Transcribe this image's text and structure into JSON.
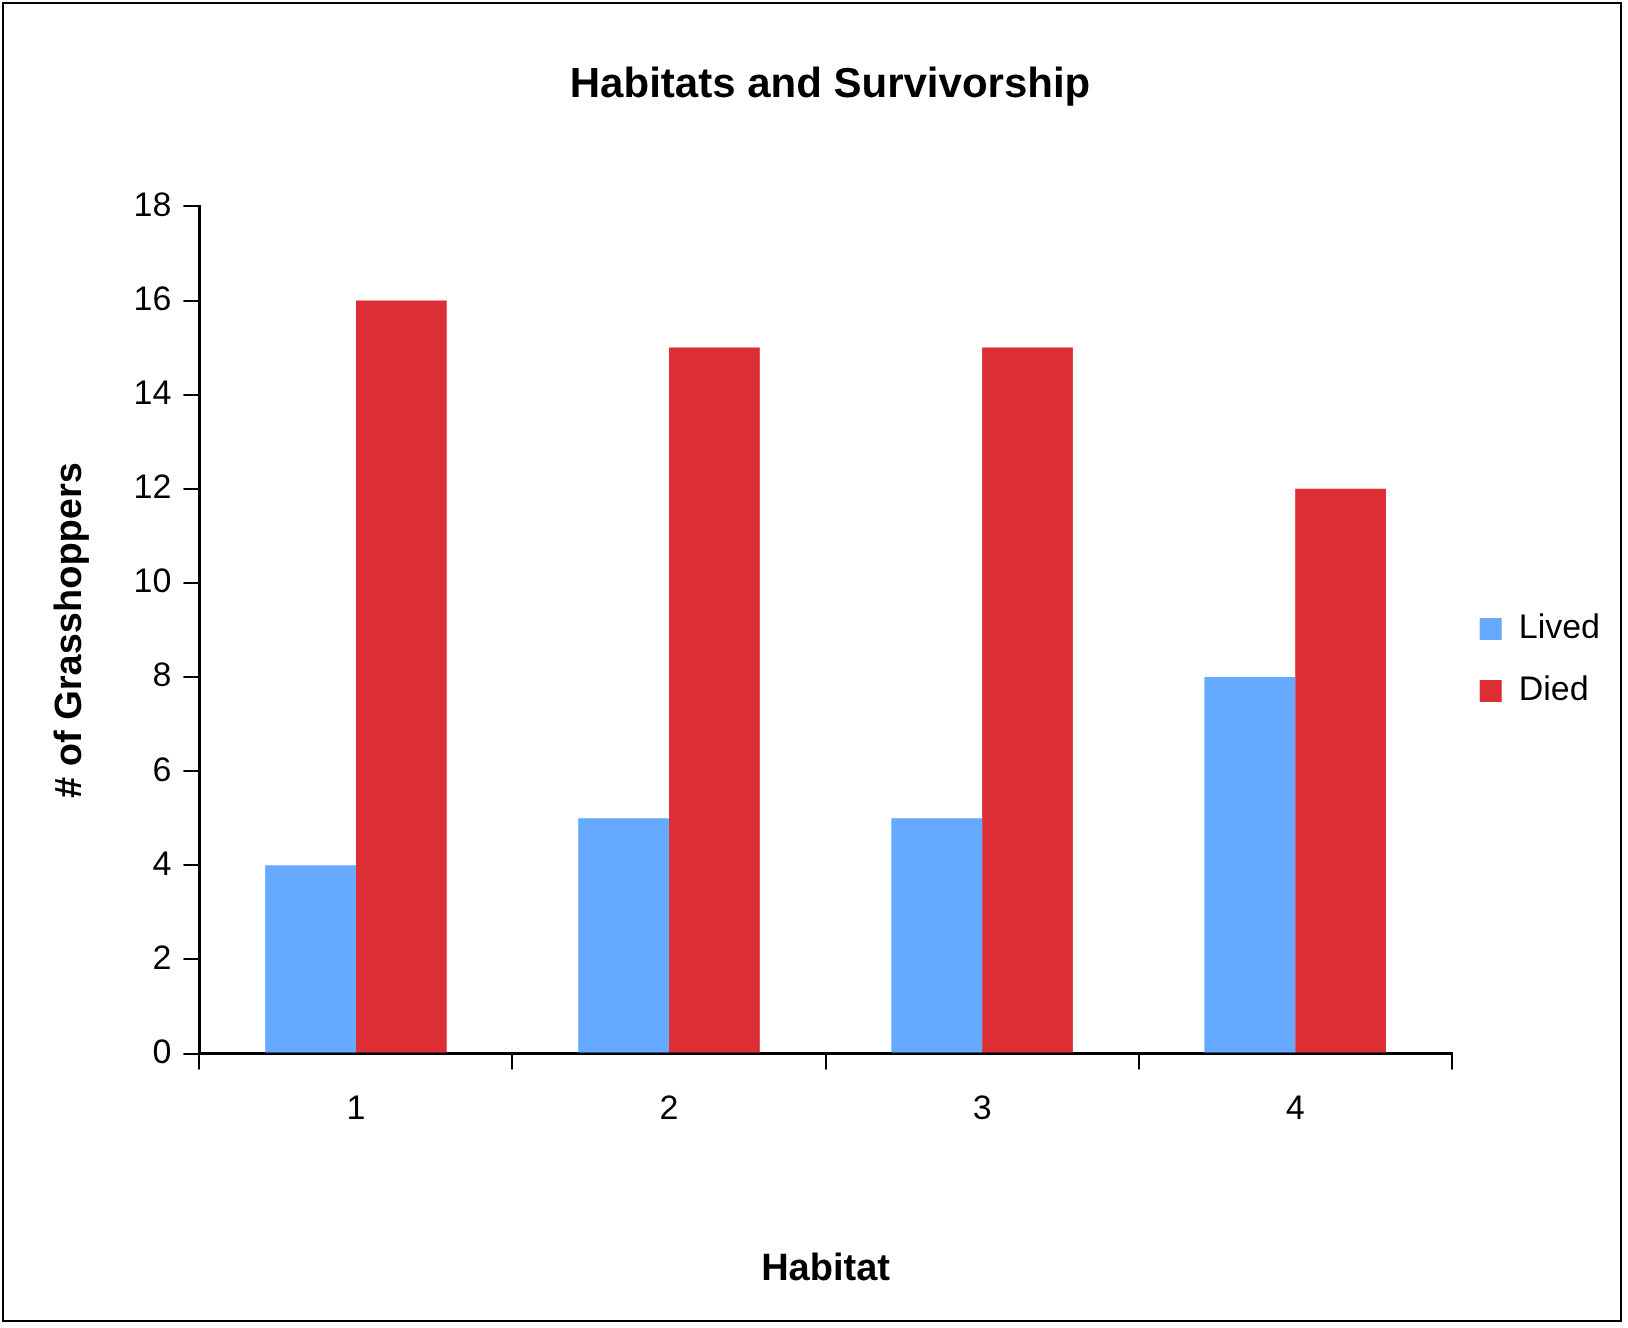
{
  "chart_data": {
    "type": "bar",
    "title": "Habitats and Survivorship",
    "xlabel": "Habitat",
    "ylabel": "# of Grasshoppers",
    "categories": [
      "1",
      "2",
      "3",
      "4"
    ],
    "series": [
      {
        "name": "Lived",
        "color": "#66aaff",
        "values": [
          4,
          5,
          5,
          8
        ]
      },
      {
        "name": "Died",
        "color": "#dd2e35",
        "values": [
          16,
          15,
          15,
          12
        ]
      }
    ],
    "ylim": [
      0,
      18
    ],
    "yticks": [
      0,
      2,
      4,
      6,
      8,
      10,
      12,
      14,
      16,
      18
    ],
    "grid": false,
    "legend": "right"
  }
}
